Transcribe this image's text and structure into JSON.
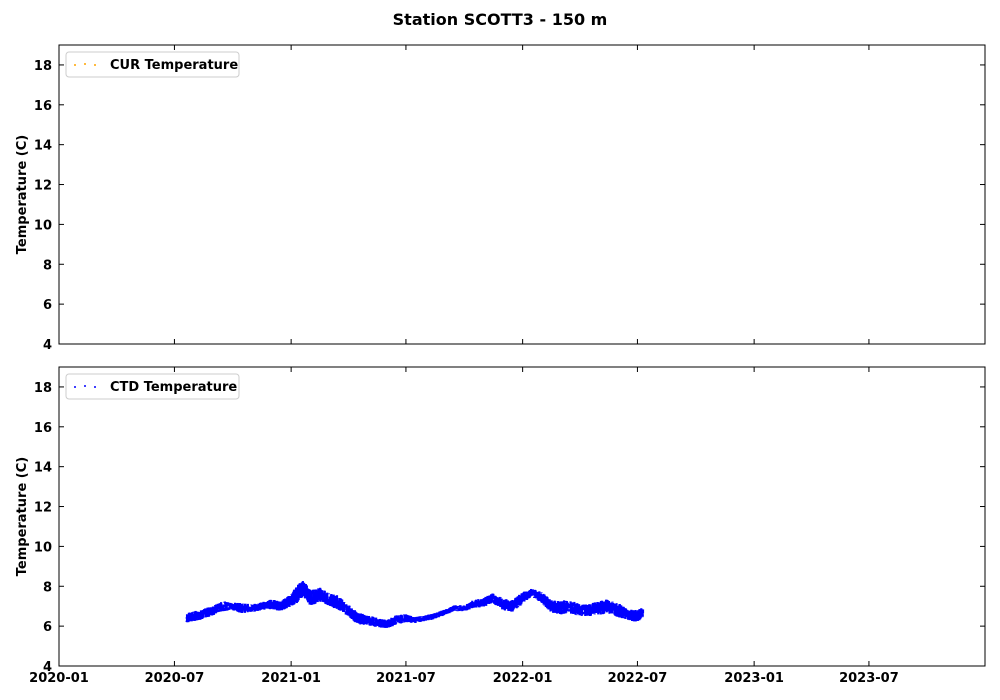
{
  "title": "Station SCOTT3 - 150 m",
  "chart_data": [
    {
      "type": "scatter",
      "ylabel": "Temperature (C)",
      "xlabel": "",
      "ylim": [
        4,
        19
      ],
      "yticks": [
        4,
        6,
        8,
        10,
        12,
        14,
        16,
        18
      ],
      "xlim": [
        "2020-01-01",
        "2023-12-31"
      ],
      "xticks": [
        "2020-01",
        "2020-07",
        "2021-01",
        "2021-07",
        "2022-01",
        "2022-07",
        "2023-01",
        "2023-07"
      ],
      "x_tick_labels_visible": false,
      "grid": false,
      "legend": "top-left",
      "series": [
        {
          "name": "CUR Temperature",
          "color": "#ffa500",
          "marker": "dot",
          "points": []
        }
      ]
    },
    {
      "type": "scatter",
      "ylabel": "Temperature (C)",
      "xlabel": "",
      "ylim": [
        4,
        19
      ],
      "yticks": [
        4,
        6,
        8,
        10,
        12,
        14,
        16,
        18
      ],
      "xlim": [
        "2020-01-01",
        "2023-12-31"
      ],
      "xticks": [
        "2020-01",
        "2020-07",
        "2021-01",
        "2021-07",
        "2022-01",
        "2022-07",
        "2023-01",
        "2023-07"
      ],
      "x_tick_labels_visible": true,
      "grid": false,
      "legend": "top-left",
      "series": [
        {
          "name": "CTD Temperature",
          "color": "#0000ff",
          "marker": "dot",
          "x": [
            "2020-07-20",
            "2020-08-01",
            "2020-08-15",
            "2020-09-01",
            "2020-09-15",
            "2020-10-01",
            "2020-10-15",
            "2020-11-01",
            "2020-11-15",
            "2020-12-01",
            "2020-12-15",
            "2021-01-01",
            "2021-01-10",
            "2021-01-20",
            "2021-02-01",
            "2021-02-15",
            "2021-03-01",
            "2021-03-15",
            "2021-04-01",
            "2021-04-15",
            "2021-05-01",
            "2021-05-15",
            "2021-06-01",
            "2021-06-15",
            "2021-07-01",
            "2021-07-15",
            "2021-08-01",
            "2021-08-15",
            "2021-09-01",
            "2021-09-15",
            "2021-10-01",
            "2021-10-15",
            "2021-11-01",
            "2021-11-15",
            "2021-12-01",
            "2021-12-15",
            "2022-01-01",
            "2022-01-15",
            "2022-02-01",
            "2022-02-15",
            "2022-03-01",
            "2022-03-15",
            "2022-04-01",
            "2022-04-15",
            "2022-05-01",
            "2022-05-15",
            "2022-06-01",
            "2022-06-15",
            "2022-07-01",
            "2022-07-10"
          ],
          "y": [
            6.4,
            6.5,
            6.6,
            6.8,
            7.0,
            7.0,
            6.9,
            6.9,
            7.0,
            7.1,
            7.0,
            7.3,
            7.6,
            7.9,
            7.4,
            7.6,
            7.3,
            7.2,
            6.8,
            6.4,
            6.3,
            6.2,
            6.1,
            6.3,
            6.4,
            6.3,
            6.4,
            6.5,
            6.7,
            6.9,
            6.9,
            7.1,
            7.2,
            7.4,
            7.1,
            7.0,
            7.4,
            7.7,
            7.4,
            7.0,
            6.9,
            7.0,
            6.8,
            6.8,
            6.9,
            7.0,
            6.8,
            6.6,
            6.5,
            6.7
          ],
          "spread": [
            0.25,
            0.25,
            0.25,
            0.25,
            0.25,
            0.2,
            0.25,
            0.2,
            0.2,
            0.25,
            0.25,
            0.3,
            0.45,
            0.4,
            0.4,
            0.35,
            0.35,
            0.35,
            0.3,
            0.3,
            0.25,
            0.25,
            0.2,
            0.25,
            0.2,
            0.15,
            0.15,
            0.15,
            0.15,
            0.15,
            0.15,
            0.2,
            0.25,
            0.25,
            0.3,
            0.3,
            0.3,
            0.2,
            0.3,
            0.3,
            0.35,
            0.35,
            0.3,
            0.3,
            0.35,
            0.35,
            0.35,
            0.3,
            0.3,
            0.25
          ]
        }
      ]
    }
  ]
}
